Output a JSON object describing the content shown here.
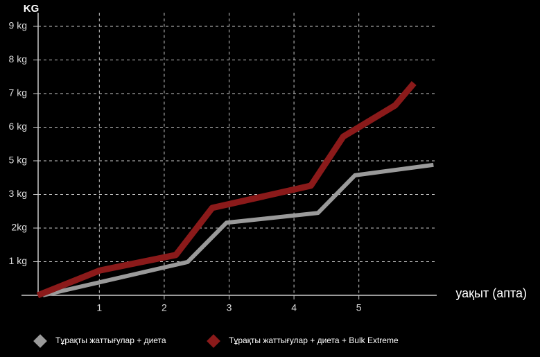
{
  "chart_data": {
    "type": "line",
    "y_label": "KG",
    "x_label": "уақыт (апта)",
    "xlim": [
      -0.2,
      6.2
    ],
    "xticks": [
      1,
      2,
      3,
      4,
      5
    ],
    "ylim": [
      0,
      9.4
    ],
    "yticks": [
      {
        "value": 1,
        "label": "1 kg"
      },
      {
        "value": 2,
        "label": "2kg"
      },
      {
        "value": 3,
        "label": "3 kg"
      },
      {
        "value": 5,
        "label": "5 kg"
      },
      {
        "value": 6,
        "label": "6 kg"
      },
      {
        "value": 7,
        "label": "7 kg"
      },
      {
        "value": 8,
        "label": "8 kg"
      },
      {
        "value": 9,
        "label": "9 kg"
      }
    ],
    "grid": true,
    "series": [
      {
        "name": "Тұрақты жаттығулар + диета",
        "color": "#9a9a9a",
        "x": [
          0.13,
          2.36,
          2.96,
          4.37,
          4.94,
          6.15
        ],
        "values": [
          0,
          0.99,
          2.16,
          2.45,
          4.14,
          4.76
        ]
      },
      {
        "name": "Тұрақты жаттығулар + диета + Bulk Extreme",
        "color": "#8b1a1a",
        "x": [
          0.05,
          1.01,
          2.18,
          2.74,
          4.26,
          4.76,
          5.56,
          5.85
        ],
        "values": [
          0,
          0.74,
          1.2,
          2.6,
          3.52,
          5.72,
          6.65,
          7.31
        ]
      }
    ]
  }
}
